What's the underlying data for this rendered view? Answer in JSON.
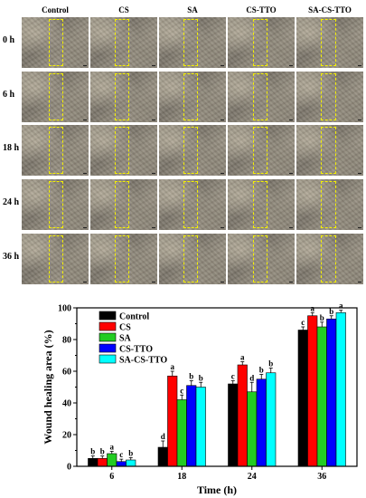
{
  "panels": {
    "columns": [
      "Control",
      "CS",
      "SA",
      "CS-TTO",
      "SA-CS-TTO"
    ],
    "rows": [
      "0 h",
      "6 h",
      "18 h",
      "24 h",
      "36 h"
    ]
  },
  "chart_data": {
    "type": "bar",
    "xlabel": "Time (h)",
    "ylabel": "Wound healing area (%)",
    "ylim": [
      0,
      100
    ],
    "yticks": [
      0,
      20,
      40,
      60,
      80,
      100
    ],
    "categories": [
      "6",
      "18",
      "24",
      "36"
    ],
    "legend_position": "top-left",
    "colors": [
      "#000000",
      "#ff0000",
      "#22cc22",
      "#0000ff",
      "#00ffff"
    ],
    "series": [
      {
        "name": "Control",
        "values": [
          5,
          12,
          52,
          86
        ],
        "errors": [
          1.5,
          4,
          2,
          2
        ],
        "letters": [
          "b",
          "d",
          "c",
          "c"
        ]
      },
      {
        "name": "CS",
        "values": [
          5,
          57,
          64,
          95
        ],
        "errors": [
          1.5,
          3,
          2,
          2
        ],
        "letters": [
          "b",
          "a",
          "a",
          "a"
        ]
      },
      {
        "name": "SA",
        "values": [
          8,
          42,
          47,
          88
        ],
        "errors": [
          1.5,
          3,
          6,
          3
        ],
        "letters": [
          "a",
          "c",
          "d",
          "b"
        ]
      },
      {
        "name": "CS-TTO",
        "values": [
          3,
          51,
          55,
          93
        ],
        "errors": [
          1.5,
          3,
          3,
          2
        ],
        "letters": [
          "c",
          "b",
          "b",
          "b"
        ]
      },
      {
        "name": "SA-CS-TTO",
        "values": [
          4,
          50,
          59,
          97
        ],
        "errors": [
          1.5,
          3,
          3,
          1.5
        ],
        "letters": [
          "b",
          "b",
          "b",
          "a"
        ]
      }
    ]
  }
}
